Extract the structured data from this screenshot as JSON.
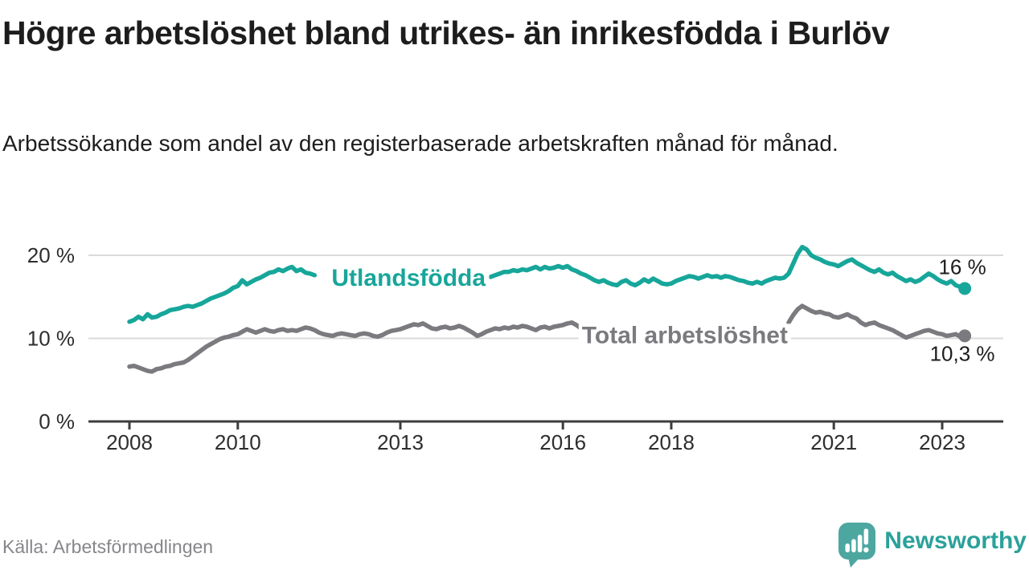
{
  "header": {
    "title": "Högre arbetslöshet bland utrikes- än inrikesfödda i Burlöv",
    "subtitle": "Arbetssökande som andel av den registerbaserade arbetskraften månad för månad."
  },
  "footer": {
    "source": "Källa: Arbetsförmedlingen",
    "brand": "Newsworthy"
  },
  "colors": {
    "foreign_born": "#17a69a",
    "total": "#7a7a7f",
    "axis": "#3d3d3d",
    "grid": "#dadada",
    "text": "#1d1d1d",
    "muted": "#86868b",
    "brand_icon": "#4da7a1",
    "brand_text": "#2ba19a",
    "background": "#ffffff"
  },
  "chart_data": {
    "type": "line",
    "title": "Högre arbetslöshet bland utrikes- än inrikesfödda i Burlöv",
    "subtitle": "Arbetssökande som andel av den registerbaserade arbetskraften månad för månad.",
    "unit": "%",
    "frequency": "monthly",
    "x_start_year": 2008,
    "x_end": "2023-06",
    "x_ticks": [
      2008,
      2010,
      2013,
      2016,
      2018,
      2021,
      2023
    ],
    "y_ticks": [
      {
        "value": 0,
        "label": "0 %"
      },
      {
        "value": 10,
        "label": "10 %"
      },
      {
        "value": 20,
        "label": "20 %"
      }
    ],
    "ylim": [
      0,
      22
    ],
    "grid": true,
    "legend_position": "inline-labels",
    "series": [
      {
        "id": "utlandsfodda",
        "name": "Utlandsfödda",
        "color": "#17a69a",
        "end_label": "16 %",
        "end_label_position": "above",
        "label_anchor": {
          "year": 2011.73,
          "value": 17.3
        },
        "values": [
          12.0,
          12.2,
          12.6,
          12.3,
          12.9,
          12.5,
          12.6,
          12.9,
          13.1,
          13.4,
          13.5,
          13.6,
          13.8,
          13.9,
          13.8,
          14.0,
          14.2,
          14.5,
          14.8,
          15.0,
          15.2,
          15.4,
          15.7,
          16.1,
          16.3,
          17.0,
          16.5,
          16.8,
          17.1,
          17.3,
          17.6,
          17.9,
          18.0,
          18.3,
          18.1,
          18.4,
          18.6,
          18.1,
          18.3,
          17.9,
          17.8,
          17.6,
          null,
          null,
          null,
          null,
          null,
          null,
          null,
          null,
          null,
          null,
          null,
          null,
          null,
          null,
          null,
          null,
          null,
          null,
          null,
          null,
          null,
          null,
          null,
          null,
          null,
          null,
          null,
          null,
          null,
          null,
          null,
          null,
          null,
          null,
          null,
          null,
          null,
          null,
          17.4,
          17.6,
          17.8,
          18.0,
          18.0,
          18.2,
          18.1,
          18.3,
          18.2,
          18.4,
          18.6,
          18.3,
          18.6,
          18.4,
          18.5,
          18.7,
          18.5,
          18.7,
          18.3,
          18.1,
          17.8,
          17.6,
          17.3,
          17.0,
          16.8,
          17.0,
          16.7,
          16.5,
          16.4,
          16.8,
          17.0,
          16.6,
          16.4,
          16.7,
          17.1,
          16.8,
          17.2,
          16.9,
          16.6,
          16.5,
          16.6,
          16.9,
          17.1,
          17.3,
          17.5,
          17.4,
          17.2,
          17.4,
          17.6,
          17.4,
          17.5,
          17.3,
          17.5,
          17.4,
          17.2,
          17.0,
          16.9,
          16.7,
          16.6,
          16.8,
          16.6,
          16.9,
          17.1,
          17.3,
          17.2,
          17.3,
          17.8,
          19.0,
          20.2,
          21.0,
          20.7,
          20.0,
          19.7,
          19.5,
          19.2,
          19.0,
          18.9,
          18.7,
          19.0,
          19.3,
          19.5,
          19.1,
          18.8,
          18.5,
          18.2,
          18.0,
          18.3,
          17.9,
          17.7,
          17.9,
          17.5,
          17.2,
          16.9,
          17.1,
          16.8,
          17.0,
          17.4,
          17.8,
          17.5,
          17.1,
          16.8,
          16.6,
          16.9,
          16.4,
          16.2,
          16.0
        ]
      },
      {
        "id": "total",
        "name": "Total arbetslöshet",
        "color": "#7a7a7f",
        "end_label": "10,3 %",
        "end_label_position": "below",
        "label_anchor": {
          "year": 2016.35,
          "value": 10.4
        },
        "values": [
          6.6,
          6.7,
          6.5,
          6.3,
          6.1,
          6.0,
          6.3,
          6.4,
          6.6,
          6.7,
          6.9,
          7.0,
          7.1,
          7.4,
          7.8,
          8.2,
          8.6,
          9.0,
          9.3,
          9.6,
          9.9,
          10.1,
          10.2,
          10.4,
          10.5,
          10.8,
          11.1,
          10.9,
          10.7,
          10.9,
          11.1,
          10.9,
          10.8,
          11.0,
          11.1,
          10.9,
          11.0,
          10.9,
          11.1,
          11.3,
          11.2,
          11.0,
          10.7,
          10.5,
          10.4,
          10.3,
          10.5,
          10.6,
          10.5,
          10.4,
          10.3,
          10.5,
          10.6,
          10.5,
          10.3,
          10.2,
          10.4,
          10.7,
          10.9,
          11.0,
          11.1,
          11.3,
          11.5,
          11.7,
          11.6,
          11.8,
          11.5,
          11.2,
          11.1,
          11.3,
          11.4,
          11.2,
          11.3,
          11.5,
          11.3,
          11.0,
          10.7,
          10.3,
          10.5,
          10.8,
          11.0,
          11.2,
          11.1,
          11.3,
          11.2,
          11.4,
          11.3,
          11.5,
          11.4,
          11.2,
          11.0,
          11.3,
          11.4,
          11.2,
          11.4,
          11.5,
          11.6,
          11.8,
          11.9,
          11.6,
          11.2,
          null,
          null,
          null,
          null,
          null,
          null,
          null,
          null,
          null,
          null,
          null,
          null,
          null,
          null,
          null,
          null,
          null,
          null,
          null,
          null,
          null,
          null,
          null,
          null,
          null,
          null,
          null,
          null,
          null,
          null,
          null,
          null,
          null,
          null,
          null,
          null,
          null,
          null,
          null,
          null,
          null,
          null,
          null,
          null,
          null,
          11.9,
          12.8,
          13.5,
          13.9,
          13.6,
          13.3,
          13.1,
          13.2,
          13.0,
          12.9,
          12.6,
          12.5,
          12.7,
          12.9,
          12.6,
          12.4,
          11.9,
          11.6,
          11.8,
          11.9,
          11.6,
          11.4,
          11.2,
          11.0,
          10.7,
          10.4,
          10.1,
          10.3,
          10.5,
          10.7,
          10.9,
          11.0,
          10.8,
          10.6,
          10.5,
          10.3,
          10.4,
          10.5,
          10.2,
          10.3
        ]
      }
    ]
  }
}
